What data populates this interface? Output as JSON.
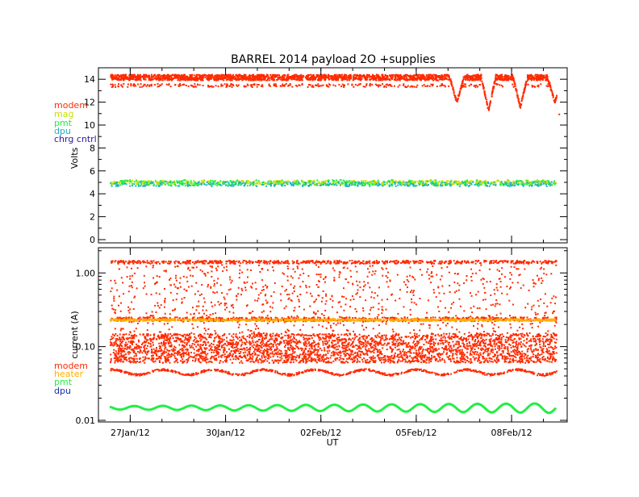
{
  "title": "BARREL 2014 payload 2O +supplies",
  "colors": {
    "modem": "#ff2a00",
    "mag": "#c8e000",
    "pmt": "#22ee44",
    "dpu": "#1fb0c0",
    "chrg_cntrl": "#2a1aa0",
    "heater": "#ffb000",
    "dpu_bottom": "#1a2ab0",
    "axis": "#000000",
    "background": "#ffffff"
  },
  "chart_data": [
    {
      "type": "scatter",
      "panel": "voltage",
      "title": "BARREL 2014 payload 2O +supplies",
      "xlabel": "",
      "ylabel": "Volts",
      "xlim": [
        "2012-01-26T00:00",
        "2012-02-09T18:00"
      ],
      "ylim": [
        0,
        15
      ],
      "yticks": [
        0,
        2,
        4,
        6,
        8,
        10,
        12,
        14
      ],
      "ytick_labels": [
        "0",
        "2",
        "4",
        "6",
        "8",
        "10",
        "12",
        "14"
      ],
      "legend": {
        "placement": "left, outside plot",
        "entries": [
          {
            "label": "modem",
            "color_key": "modem"
          },
          {
            "label": "mag",
            "color_key": "mag"
          },
          {
            "label": "pmt",
            "color_key": "pmt"
          },
          {
            "label": "dpu",
            "color_key": "dpu"
          },
          {
            "label": "chrg cntrl",
            "color_key": "chrg_cntrl"
          }
        ]
      },
      "series": [
        {
          "name": "modem",
          "color_key": "modem",
          "x": [
            "2012-01-26T06:00",
            "2012-01-27T00:00",
            "2012-01-28T00:00",
            "2012-01-29T00:00",
            "2012-01-30T00:00",
            "2012-01-31T00:00",
            "2012-02-01T00:00",
            "2012-02-02T00:00",
            "2012-02-03T00:00",
            "2012-02-04T00:00",
            "2012-02-05T00:00",
            "2012-02-05T12:00",
            "2012-02-06T00:00",
            "2012-02-06T06:00",
            "2012-02-06T14:00",
            "2012-02-07T00:00",
            "2012-02-07T06:00",
            "2012-02-07T14:00",
            "2012-02-08T00:00",
            "2012-02-08T06:00",
            "2012-02-08T14:00",
            "2012-02-09T00:00",
            "2012-02-09T08:00",
            "2012-02-09T12:00"
          ],
          "y_high": [
            14.3,
            14.3,
            14.3,
            14.3,
            14.3,
            14.3,
            14.3,
            14.3,
            14.3,
            14.3,
            14.3,
            14.3,
            14.2,
            12.0,
            14.3,
            14.2,
            11.3,
            14.3,
            14.2,
            11.6,
            14.3,
            14.2,
            12.0,
            11.0
          ],
          "y_low": [
            13.4,
            13.4,
            13.4,
            13.4,
            13.4,
            13.4,
            13.4,
            13.4,
            13.4,
            13.4,
            13.4,
            13.4,
            13.2,
            12.0,
            13.4,
            13.2,
            11.3,
            13.4,
            13.2,
            11.6,
            13.4,
            13.2,
            12.0,
            11.0
          ]
        },
        {
          "name": "mag",
          "color_key": "mag",
          "x_range": [
            "2012-01-26T06:00",
            "2012-02-09T12:00"
          ],
          "y_center": 5.0,
          "y_spread": 0.15
        },
        {
          "name": "pmt",
          "color_key": "pmt",
          "x_range": [
            "2012-01-26T06:00",
            "2012-02-09T12:00"
          ],
          "y_center": 4.95,
          "y_spread": 0.25
        },
        {
          "name": "dpu",
          "color_key": "dpu",
          "x_range": [
            "2012-01-26T06:00",
            "2012-02-09T12:00"
          ],
          "y_center": 4.85,
          "y_spread": 0.2
        }
      ]
    },
    {
      "type": "scatter",
      "panel": "current",
      "xlabel": "UT",
      "ylabel": "current (A)",
      "yscale": "log",
      "xlim": [
        "2012-01-26T00:00",
        "2012-02-09T18:00"
      ],
      "ylim": [
        0.0095,
        2.2
      ],
      "yticks": [
        0.01,
        0.1,
        1.0
      ],
      "ytick_labels": [
        "0.01",
        "0.10",
        "1.00"
      ],
      "xticks": [
        "2012-01-27",
        "2012-01-30",
        "2012-02-02",
        "2012-02-05",
        "2012-02-08"
      ],
      "xtick_labels": [
        "27Jan/12",
        "30Jan/12",
        "02Feb/12",
        "05Feb/12",
        "08Feb/12"
      ],
      "legend": {
        "placement": "left, outside plot",
        "entries": [
          {
            "label": "modem",
            "color_key": "modem"
          },
          {
            "label": "heater",
            "color_key": "heater"
          },
          {
            "label": "pmt",
            "color_key": "pmt"
          },
          {
            "label": "dpu",
            "color_key": "dpu_bottom"
          }
        ]
      },
      "series": [
        {
          "name": "modem",
          "color_key": "modem",
          "x_range": [
            "2012-01-26T06:00",
            "2012-02-09T12:00"
          ],
          "y_upper": 1.4,
          "y_band_low": 0.06,
          "y_band_high": 0.15,
          "y_lower": 0.045
        },
        {
          "name": "heater",
          "color_key": "heater",
          "x_range": [
            "2012-01-26T06:00",
            "2012-02-09T12:00"
          ],
          "y_center": 0.23
        },
        {
          "name": "pmt",
          "color_key": "pmt",
          "x_range": [
            "2012-01-26T06:00",
            "2012-02-09T12:00"
          ],
          "y_center": 0.0148,
          "period_days": 0.9
        }
      ]
    }
  ]
}
